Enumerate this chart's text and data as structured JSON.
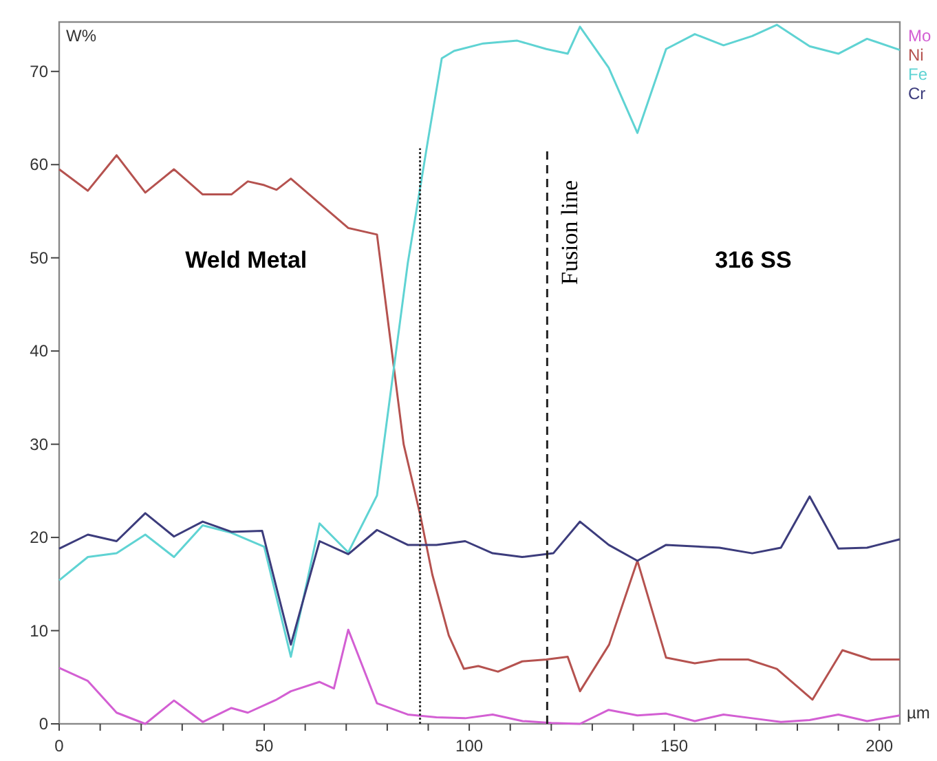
{
  "chart_data": {
    "type": "line",
    "ylabel": "W%",
    "xlabel": "µm",
    "xlim": [
      0,
      205
    ],
    "ylim": [
      0,
      75.3
    ],
    "xticks": [
      0,
      {
        "value": 10,
        "label": null
      },
      {
        "value": 20,
        "label": null
      },
      {
        "value": 30,
        "label": null
      },
      {
        "value": 40,
        "label": null
      },
      50,
      {
        "value": 60,
        "label": null
      },
      {
        "value": 70,
        "label": null
      },
      {
        "value": 80,
        "label": null
      },
      {
        "value": 90,
        "label": null
      },
      100,
      {
        "value": 110,
        "label": null
      },
      {
        "value": 120,
        "label": null
      },
      {
        "value": 130,
        "label": null
      },
      {
        "value": 140,
        "label": null
      },
      150,
      {
        "value": 160,
        "label": null
      },
      {
        "value": 170,
        "label": null
      },
      {
        "value": 180,
        "label": null
      },
      {
        "value": 190,
        "label": null
      },
      200
    ],
    "yticks": [
      0,
      10,
      20,
      30,
      40,
      50,
      60,
      70
    ],
    "grid": false,
    "legend": "top right",
    "marker": "none",
    "line_style": "solid",
    "series": [
      {
        "name": "Mo",
        "color": "#d35fd3",
        "x": [
          0,
          7,
          14,
          21,
          28,
          35,
          42,
          46,
          53,
          56.5,
          63.5,
          67,
          70.5,
          77.5,
          85,
          92,
          99,
          105.7,
          113,
          120,
          127,
          134,
          141,
          148,
          155,
          162,
          169,
          176,
          183,
          190,
          197,
          205
        ],
        "values": [
          6.0,
          4.6,
          1.2,
          0,
          2.5,
          0.2,
          1.7,
          1.2,
          2.6,
          3.5,
          4.5,
          3.8,
          10.1,
          2.2,
          1.0,
          0.7,
          0.6,
          1.0,
          0.3,
          0.1,
          0,
          1.5,
          0.9,
          1.1,
          0.3,
          1.0,
          0.6,
          0.2,
          0.4,
          1.0,
          0.3,
          0.9
        ]
      },
      {
        "name": "Ni",
        "color": "#b5524f",
        "x": [
          0,
          7,
          14,
          21,
          28,
          35,
          42,
          46,
          50,
          53,
          56.5,
          70.5,
          77.5,
          84,
          88,
          91,
          95,
          98.7,
          102.2,
          107,
          112.9,
          118.8,
          124,
          127,
          134.1,
          141,
          148,
          155,
          161,
          168,
          175,
          183.7,
          191,
          198,
          205
        ],
        "values": [
          59.5,
          57.2,
          61,
          57,
          59.5,
          56.8,
          56.8,
          58.2,
          57.8,
          57.3,
          58.5,
          53.2,
          52.5,
          30,
          22.5,
          16,
          9.5,
          5.9,
          6.2,
          5.6,
          6.7,
          6.9,
          7.2,
          3.5,
          8.5,
          17.5,
          7.1,
          6.5,
          6.9,
          6.9,
          5.9,
          2.6,
          7.9,
          6.9,
          6.9
        ]
      },
      {
        "name": "Fe",
        "color": "#5fd3d3",
        "x": [
          0,
          7,
          14,
          21,
          28,
          35,
          42,
          50,
          56.5,
          63.5,
          70.5,
          77.5,
          85,
          90,
          93.3,
          96.3,
          103.4,
          111.7,
          118.8,
          124,
          127,
          134,
          141,
          148,
          155,
          162,
          169,
          175,
          183,
          190,
          197,
          205
        ],
        "values": [
          15.4,
          17.9,
          18.3,
          20.3,
          17.9,
          21.3,
          20.5,
          19.0,
          7.2,
          21.5,
          18.4,
          24.5,
          49.4,
          62.8,
          71.4,
          72.2,
          73,
          73.3,
          72.4,
          71.9,
          74.8,
          70.4,
          63.4,
          72.4,
          74,
          72.8,
          73.8,
          75,
          72.7,
          71.9,
          73.5,
          72.3
        ]
      },
      {
        "name": "Cr",
        "color": "#3c3c7c",
        "x": [
          0,
          7,
          14,
          21,
          28,
          35,
          42,
          49.5,
          56.5,
          63.5,
          70.5,
          77.5,
          85,
          92,
          99,
          105.7,
          112.9,
          120.5,
          127,
          134,
          141,
          148,
          161,
          169,
          176,
          183,
          190,
          197,
          205
        ],
        "values": [
          18.8,
          20.3,
          19.6,
          22.6,
          20.1,
          21.7,
          20.6,
          20.7,
          8.5,
          19.6,
          18.2,
          20.8,
          19.2,
          19.2,
          19.6,
          18.3,
          17.9,
          18.3,
          21.7,
          19.2,
          17.5,
          19.2,
          18.9,
          18.3,
          18.9,
          24.4,
          18.8,
          18.9,
          19.8
        ]
      }
    ],
    "ref_lines": [
      {
        "axis": "x",
        "value": 88,
        "line_style": "dotted",
        "color": "#333333"
      },
      {
        "axis": "x",
        "value": 119,
        "label": "Fusion line",
        "line_style": "dashed",
        "color": "#222222"
      }
    ],
    "annotations": [
      "Weld Metal",
      "316 SS"
    ]
  }
}
